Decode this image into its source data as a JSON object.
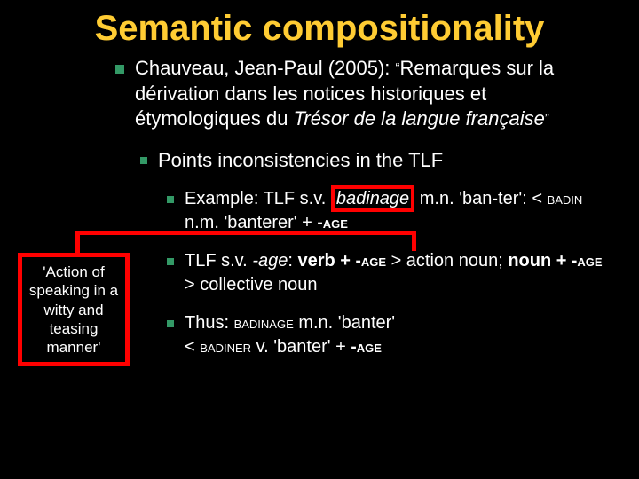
{
  "title": "Semantic compositionality",
  "main": {
    "author": "Chauveau, Jean-Paul (2005): ",
    "open_quote": "“",
    "ref_part1": "Remarques sur la dérivation dans les notices historiques et étymologiques du ",
    "ref_italic": "Trésor de la langue française",
    "close_quote": "”"
  },
  "sub1": "Points inconsistencies in the TLF",
  "example": {
    "pre": "Example: TLF s.v. ",
    "boxed": "badinage",
    "post1": " m.n. 'ban-ter': < ",
    "sc1": "badin",
    "mid": " n.m. 'banterer' + ",
    "sc2": "-age"
  },
  "tlf": {
    "t1": "TLF s.v. ",
    "it1": "-age",
    "t2": ": ",
    "b1": "verb + ",
    "sc1": "-age",
    "t3": " > action noun; ",
    "b2": "noun + ",
    "sc2": "-age",
    "t4": " > collective noun"
  },
  "thus": {
    "t1": "Thus: ",
    "sc1": "badinage",
    "t2": " m.n. 'banter'",
    "t3": "< ",
    "sc2": "badiner",
    "t4": " v. 'banter' + ",
    "sc3": "-age"
  },
  "callout": "'Action of speaking in a witty and teasing manner'",
  "colors": {
    "bg": "#000000",
    "title": "#ffcc33",
    "text": "#ffffff",
    "bullet": "#339966",
    "highlight": "#ff0000"
  }
}
